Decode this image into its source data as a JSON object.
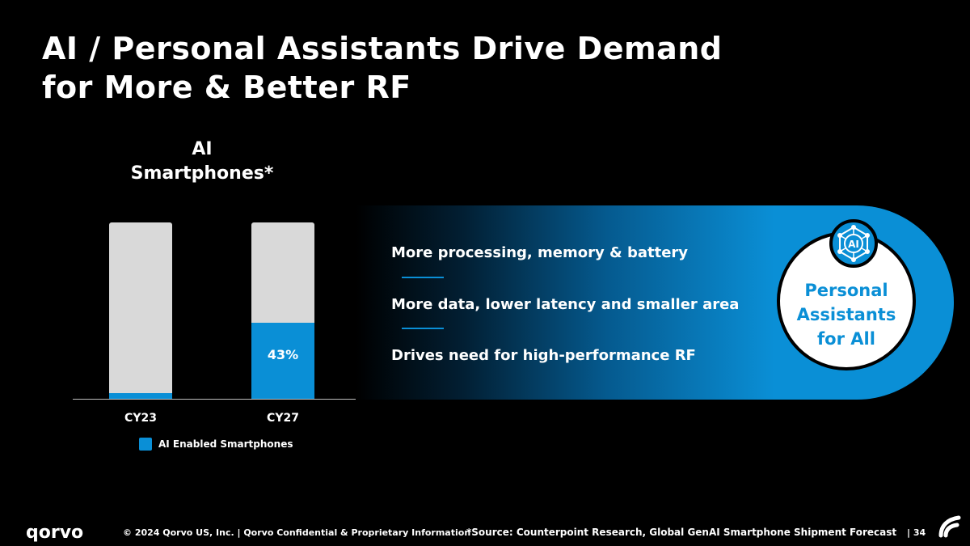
{
  "title": {
    "line1": "AI / Personal Assistants Drive Demand",
    "line2": "for More & Better RF"
  },
  "chart": {
    "title_line1": "AI",
    "title_line2": "Smartphones*"
  },
  "chart_data": {
    "type": "bar",
    "title": "AI Smartphones*",
    "categories": [
      "CY23",
      "CY27"
    ],
    "series": [
      {
        "name": "AI Enabled Smartphones",
        "values": [
          3,
          43
        ],
        "labels": [
          "",
          "43%"
        ]
      }
    ],
    "ylim": [
      0,
      100
    ],
    "unit": "%",
    "legend": "bottom-center",
    "colors": {
      "series": "#0a8fd6",
      "remainder": "#d9d9d9"
    }
  },
  "bullets": [
    "More processing, memory & battery",
    "More data, lower latency and smaller area",
    "Drives need for high-performance RF"
  ],
  "badge": {
    "icon": "ai-network-icon",
    "text": "AI"
  },
  "circle": {
    "line1": "Personal",
    "line2": "Assistants",
    "line3": "for All"
  },
  "footer": {
    "logo": "qorvo",
    "copyright": "© 2024 Qorvo US, Inc. | Qorvo Confidential & Proprietary Information",
    "source": "*Source: Counterpoint Research, Global GenAI Smartphone Shipment Forecast",
    "page": "| 34"
  },
  "colors": {
    "accent": "#0a8fd6",
    "background": "#000000",
    "text": "#ffffff"
  }
}
